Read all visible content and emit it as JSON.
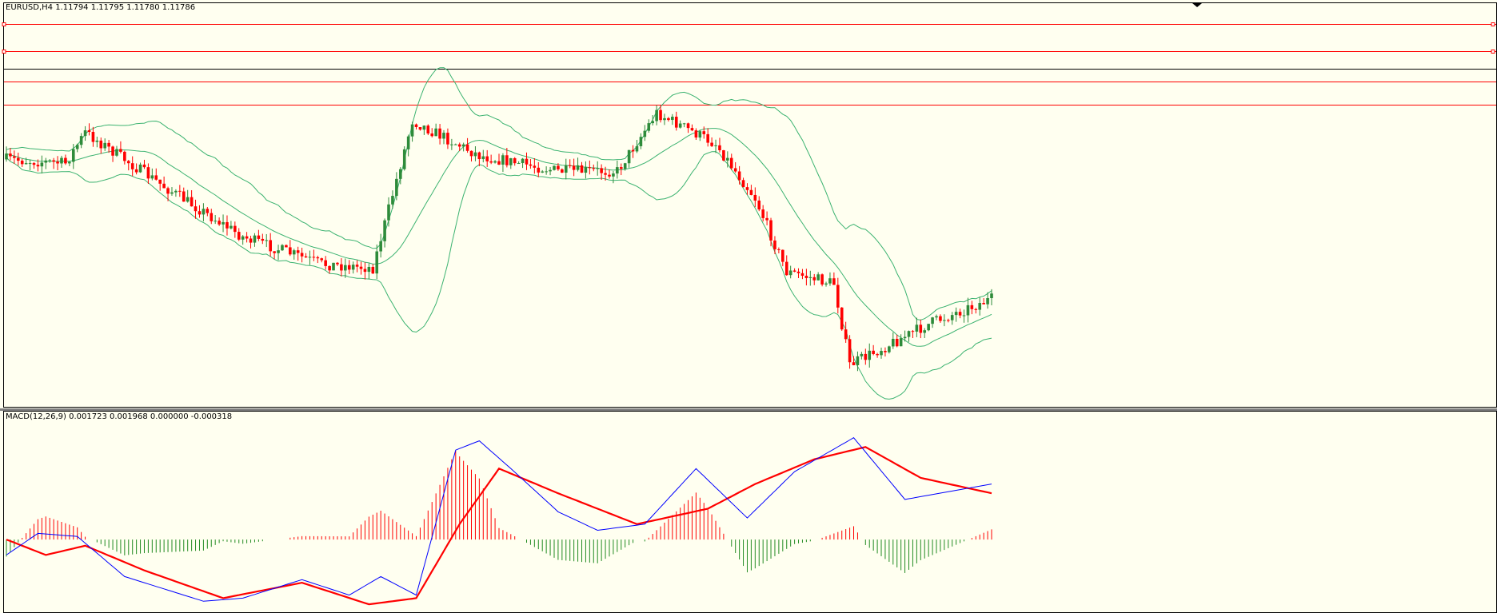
{
  "price_panel": {
    "title": "EURUSD,H4  1.11794 1.11795 1.11780 1.11786",
    "horizontal_lines": [
      {
        "color": "#ff0000"
      },
      {
        "color": "#ff0000"
      },
      {
        "color": "#000000"
      },
      {
        "color": "#ff0000"
      },
      {
        "color": "#ff0000"
      }
    ]
  },
  "macd_panel": {
    "title": "MACD(12,26,9) 0.001723 0.001968 0.000000 -0.000318"
  },
  "colors": {
    "background": "#fffff0",
    "bull_candle": "#2e8b3a",
    "bear_candle": "#ff0000",
    "bollinger": "#3cb371",
    "macd_line": "#0000ff",
    "signal_line": "#ff0000",
    "hist_pos": "#ff0000",
    "hist_neg": "#228b22",
    "grid_border": "#000000"
  },
  "chart_data": [
    {
      "type": "candlestick",
      "symbol": "EURUSD",
      "timeframe": "H4",
      "last_quote": {
        "open": 1.11794,
        "high": 1.11795,
        "low": 1.1178,
        "close": 1.11786
      },
      "indicators": [
        "Bollinger Bands"
      ],
      "close_path": [
        {
          "x": 0,
          "y": 0.37
        },
        {
          "x": 15,
          "y": 0.38
        },
        {
          "x": 20,
          "y": 0.3
        },
        {
          "x": 40,
          "y": 0.44
        },
        {
          "x": 60,
          "y": 0.57
        },
        {
          "x": 80,
          "y": 0.64
        },
        {
          "x": 93,
          "y": 0.65
        },
        {
          "x": 103,
          "y": 0.27
        },
        {
          "x": 120,
          "y": 0.36
        },
        {
          "x": 140,
          "y": 0.4
        },
        {
          "x": 155,
          "y": 0.4
        },
        {
          "x": 165,
          "y": 0.25
        },
        {
          "x": 180,
          "y": 0.33
        },
        {
          "x": 190,
          "y": 0.47
        },
        {
          "x": 198,
          "y": 0.66
        },
        {
          "x": 210,
          "y": 0.69
        },
        {
          "x": 214,
          "y": 0.9
        },
        {
          "x": 235,
          "y": 0.79
        },
        {
          "x": 250,
          "y": 0.73
        }
      ],
      "xlim": [
        0,
        250
      ]
    },
    {
      "type": "line",
      "name": "MACD(12,26,9)",
      "indicators": [
        "MACD line",
        "Signal line",
        "Histogram"
      ],
      "values_shown": [
        0.001723,
        0.001968,
        0.0,
        -0.000318
      ],
      "macd_path": [
        {
          "x": 0,
          "y": -0.5
        },
        {
          "x": 8,
          "y": 0.2
        },
        {
          "x": 18,
          "y": 0.1
        },
        {
          "x": 30,
          "y": -1.2
        },
        {
          "x": 50,
          "y": -2.0
        },
        {
          "x": 60,
          "y": -1.9
        },
        {
          "x": 75,
          "y": -1.3
        },
        {
          "x": 87,
          "y": -1.8
        },
        {
          "x": 95,
          "y": -1.2
        },
        {
          "x": 104,
          "y": -1.8
        },
        {
          "x": 114,
          "y": 2.9
        },
        {
          "x": 120,
          "y": 3.2
        },
        {
          "x": 128,
          "y": 2.3
        },
        {
          "x": 140,
          "y": 0.9
        },
        {
          "x": 150,
          "y": 0.3
        },
        {
          "x": 162,
          "y": 0.5
        },
        {
          "x": 175,
          "y": 2.3
        },
        {
          "x": 188,
          "y": 0.7
        },
        {
          "x": 200,
          "y": 2.2
        },
        {
          "x": 215,
          "y": 3.3
        },
        {
          "x": 228,
          "y": 1.3
        },
        {
          "x": 250,
          "y": 1.8
        }
      ],
      "signal_path": [
        {
          "x": 0,
          "y": 0.0
        },
        {
          "x": 10,
          "y": -0.5
        },
        {
          "x": 20,
          "y": -0.2
        },
        {
          "x": 35,
          "y": -1.0
        },
        {
          "x": 55,
          "y": -1.9
        },
        {
          "x": 75,
          "y": -1.4
        },
        {
          "x": 92,
          "y": -2.1
        },
        {
          "x": 104,
          "y": -1.9
        },
        {
          "x": 115,
          "y": 0.5
        },
        {
          "x": 125,
          "y": 2.3
        },
        {
          "x": 140,
          "y": 1.5
        },
        {
          "x": 160,
          "y": 0.5
        },
        {
          "x": 178,
          "y": 1.0
        },
        {
          "x": 190,
          "y": 1.8
        },
        {
          "x": 205,
          "y": 2.6
        },
        {
          "x": 218,
          "y": 3.0
        },
        {
          "x": 232,
          "y": 2.0
        },
        {
          "x": 250,
          "y": 1.5
        }
      ],
      "xlim": [
        0,
        250
      ],
      "ylim": [
        -2.2,
        3.5
      ]
    }
  ]
}
